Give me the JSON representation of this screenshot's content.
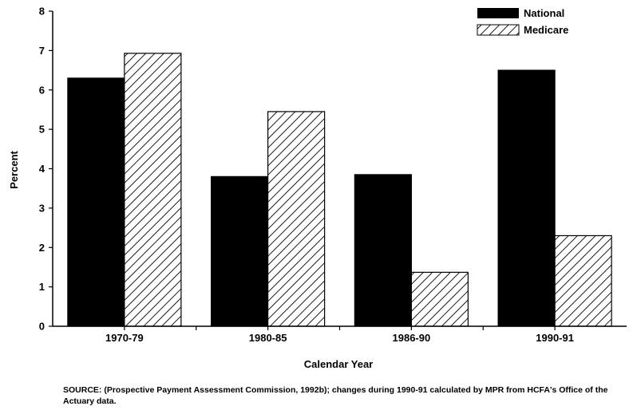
{
  "chart_data": {
    "type": "bar",
    "categories": [
      "1970-79",
      "1980-85",
      "1986-90",
      "1990-91"
    ],
    "series": [
      {
        "name": "National",
        "values": [
          6.3,
          3.8,
          3.85,
          6.5
        ],
        "fill": "solid-black"
      },
      {
        "name": "Medicare",
        "values": [
          6.93,
          5.45,
          1.37,
          2.3
        ],
        "fill": "diagonal-hatch"
      }
    ],
    "title": "",
    "xlabel": "Calendar Year",
    "ylabel": "Percent",
    "ylim": [
      0,
      8
    ],
    "yticks": [
      "0",
      "1",
      "2",
      "3",
      "4",
      "5",
      "6",
      "7",
      "8"
    ],
    "grid": false,
    "legend_position": "top-right",
    "colors": {
      "national": "#000000",
      "medicare_hatch": "#000000",
      "background": "#ffffff"
    }
  },
  "source_note": "SOURCE:  (Prospective Payment Assessment Commission, 1992b); changes during 1990-91 calculated by MPR from HCFA's Office of the Actuary data."
}
